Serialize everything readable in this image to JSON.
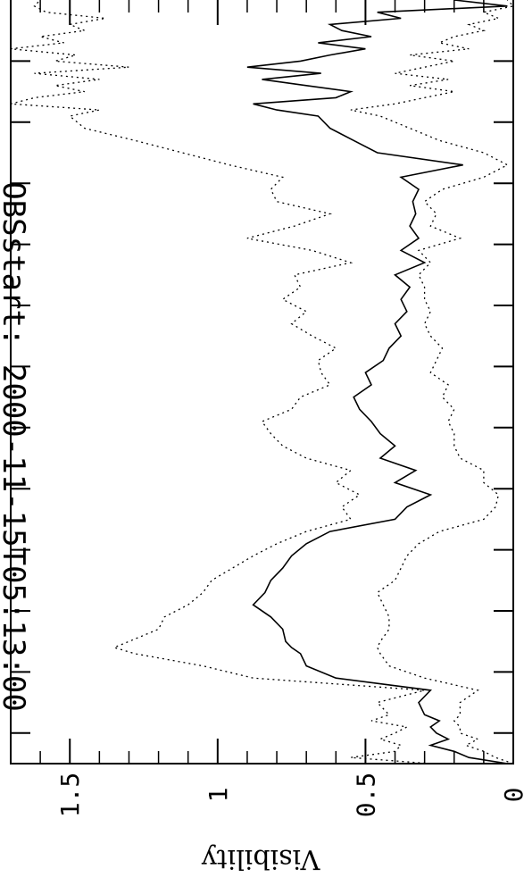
{
  "chart_data": {
    "type": "line",
    "title": "OBSstart: 2000-11-15T05:13:00",
    "ylabel": "Visibility",
    "xlabel": "",
    "ylim": [
      0,
      1.7
    ],
    "ytick_labels": [
      "0",
      "0.5",
      "1",
      "1.5"
    ],
    "yticks": [
      0,
      0.5,
      1,
      1.5
    ],
    "x_range": [
      0,
      125
    ],
    "grid": false,
    "series": [
      {
        "style": "solid",
        "x": [
          0,
          1,
          2,
          3,
          4,
          5,
          6,
          7,
          8,
          10,
          12,
          14,
          16,
          18,
          19,
          20,
          22,
          24,
          26,
          28,
          30,
          32,
          34,
          36,
          38,
          40,
          42,
          44,
          46,
          48,
          50,
          52,
          54,
          56,
          58,
          60,
          62,
          64,
          66,
          68,
          70,
          72,
          74,
          76,
          78,
          80,
          82,
          84,
          86,
          88,
          90,
          92,
          94,
          96,
          98,
          100,
          102,
          104,
          106,
          107,
          108,
          109,
          110,
          111,
          112,
          113,
          114,
          115,
          116,
          117,
          118,
          119,
          120,
          121,
          122,
          123,
          124,
          125
        ],
        "y": [
          0.02,
          0.15,
          0.2,
          0.28,
          0.22,
          0.26,
          0.28,
          0.25,
          0.3,
          0.32,
          0.28,
          0.6,
          0.7,
          0.72,
          0.75,
          0.77,
          0.78,
          0.82,
          0.88,
          0.84,
          0.82,
          0.78,
          0.75,
          0.7,
          0.62,
          0.4,
          0.36,
          0.28,
          0.4,
          0.33,
          0.45,
          0.4,
          0.45,
          0.48,
          0.52,
          0.54,
          0.48,
          0.5,
          0.44,
          0.42,
          0.38,
          0.4,
          0.36,
          0.38,
          0.35,
          0.4,
          0.3,
          0.38,
          0.32,
          0.35,
          0.33,
          0.34,
          0.32,
          0.38,
          0.17,
          0.46,
          0.54,
          0.62,
          0.66,
          0.8,
          0.88,
          0.6,
          0.55,
          0.7,
          0.85,
          0.65,
          0.9,
          0.72,
          0.62,
          0.5,
          0.66,
          0.48,
          0.58,
          0.62,
          0.38,
          0.46,
          0.02,
          0.2
        ]
      },
      {
        "style": "dotted",
        "x": [
          0,
          1,
          2,
          3,
          4,
          5,
          6,
          7,
          8,
          10,
          12,
          14,
          16,
          18,
          19,
          20,
          22,
          24,
          26,
          28,
          30,
          32,
          34,
          36,
          38,
          40,
          42,
          44,
          46,
          48,
          50,
          52,
          54,
          56,
          58,
          60,
          62,
          64,
          66,
          68,
          70,
          72,
          74,
          76,
          78,
          80,
          82,
          84,
          86,
          88,
          90,
          92,
          94,
          96,
          98,
          100,
          102,
          104,
          106,
          107,
          108,
          109,
          110,
          111,
          112,
          113,
          114,
          115,
          116,
          117,
          118,
          119,
          120,
          121,
          122,
          123,
          124,
          125
        ],
        "y": [
          0.28,
          0.55,
          0.4,
          0.38,
          0.45,
          0.4,
          0.36,
          0.48,
          0.42,
          0.46,
          0.3,
          0.88,
          1.05,
          1.28,
          1.35,
          1.3,
          1.2,
          1.18,
          1.1,
          1.05,
          1.02,
          0.95,
          0.88,
          0.8,
          0.7,
          0.55,
          0.58,
          0.52,
          0.6,
          0.55,
          0.7,
          0.78,
          0.82,
          0.85,
          0.75,
          0.72,
          0.62,
          0.65,
          0.66,
          0.6,
          0.68,
          0.75,
          0.7,
          0.78,
          0.72,
          0.74,
          0.55,
          0.68,
          0.9,
          0.74,
          0.62,
          0.8,
          0.82,
          0.78,
          0.96,
          1.12,
          1.28,
          1.45,
          1.5,
          1.4,
          1.7,
          1.62,
          1.45,
          1.55,
          1.4,
          1.62,
          1.3,
          1.55,
          1.48,
          1.7,
          1.52,
          1.6,
          1.45,
          1.5,
          1.38,
          1.58,
          1.62,
          1.6
        ]
      },
      {
        "style": "dotted",
        "x": [
          0,
          1,
          2,
          3,
          4,
          5,
          6,
          7,
          8,
          10,
          12,
          14,
          16,
          18,
          19,
          20,
          22,
          24,
          26,
          28,
          30,
          32,
          34,
          36,
          38,
          40,
          42,
          44,
          46,
          48,
          50,
          52,
          54,
          56,
          58,
          60,
          62,
          64,
          66,
          68,
          70,
          72,
          74,
          76,
          78,
          80,
          82,
          84,
          86,
          88,
          90,
          92,
          94,
          96,
          98,
          100,
          102,
          104,
          106,
          107,
          108,
          109,
          110,
          111,
          112,
          113,
          114,
          115,
          116,
          117,
          118,
          119,
          120,
          121,
          122,
          123,
          124,
          125
        ],
        "y": [
          0.0,
          0.06,
          0.1,
          0.16,
          0.12,
          0.18,
          0.18,
          0.2,
          0.18,
          0.18,
          0.12,
          0.3,
          0.42,
          0.45,
          0.46,
          0.45,
          0.42,
          0.42,
          0.44,
          0.46,
          0.4,
          0.38,
          0.36,
          0.32,
          0.25,
          0.1,
          0.06,
          0.05,
          0.1,
          0.1,
          0.18,
          0.2,
          0.2,
          0.22,
          0.2,
          0.24,
          0.22,
          0.28,
          0.26,
          0.24,
          0.28,
          0.3,
          0.28,
          0.3,
          0.3,
          0.32,
          0.28,
          0.32,
          0.18,
          0.28,
          0.26,
          0.3,
          0.24,
          0.1,
          0.02,
          0.1,
          0.25,
          0.35,
          0.45,
          0.55,
          0.4,
          0.3,
          0.2,
          0.35,
          0.22,
          0.4,
          0.3,
          0.2,
          0.35,
          0.15,
          0.25,
          0.2,
          0.1,
          0.15,
          0.05,
          0.1,
          0.0,
          0.02
        ]
      }
    ]
  }
}
